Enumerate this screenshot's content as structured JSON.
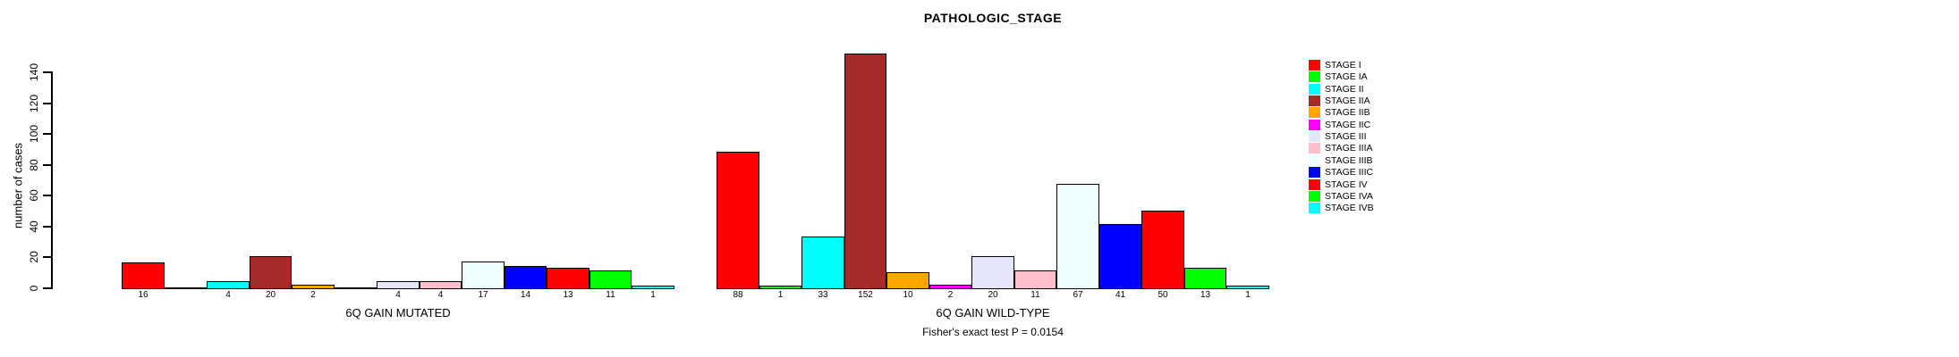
{
  "chart_data": {
    "type": "bar",
    "title": "PATHOLOGIC_STAGE",
    "ylabel": "number of cases",
    "xlabel": "",
    "ylim": [
      0,
      140
    ],
    "yticks": [
      0,
      20,
      40,
      60,
      80,
      100,
      120,
      140
    ],
    "grid": false,
    "legend_position": "right",
    "background": "#FFFFFF",
    "categories": [
      "STAGE I",
      "STAGE IA",
      "STAGE II",
      "STAGE IIA",
      "STAGE IIB",
      "STAGE IIC",
      "STAGE III",
      "STAGE IIIA",
      "STAGE IIIB",
      "STAGE IIIC",
      "STAGE IV",
      "STAGE IVA",
      "STAGE IVB"
    ],
    "colors": [
      "#FF0000",
      "#00FF00",
      "#00FFFF",
      "#A52A2A",
      "#FFA500",
      "#FF00FF",
      "#E6E6FA",
      "#FFC0CB",
      "#F0FFFF",
      "#0000FF",
      "#FF0000",
      "#00FF00",
      "#00FFFF"
    ],
    "groups": [
      {
        "label": "6Q GAIN MUTATED",
        "values": [
          16,
          0,
          4,
          20,
          2,
          0,
          4,
          4,
          17,
          14,
          13,
          11,
          1
        ]
      },
      {
        "label": "6Q GAIN WILD-TYPE",
        "values": [
          88,
          1,
          33,
          152,
          10,
          2,
          20,
          11,
          67,
          41,
          50,
          13,
          1
        ]
      }
    ],
    "zero_value_labels_hidden": true,
    "annotation": "Fisher's exact test P = 0.0154"
  }
}
